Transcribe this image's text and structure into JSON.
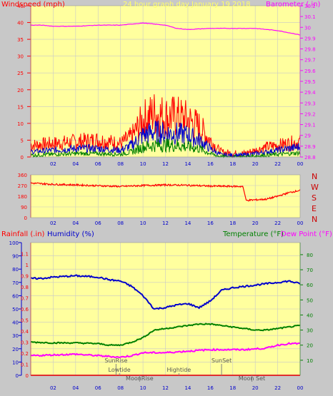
{
  "header": {
    "windspeed_label": "Windspeed (mph)",
    "title": "24 hour graph day   January 19 2018",
    "barometer_label": "Barometer (.in)"
  },
  "labels": {
    "rainfall": "Rainfall (.in)",
    "humidity": "Humidity (%)",
    "temperature": "Temperature (°F)",
    "dewpoint": "Dew Point (°F)",
    "compass": [
      "N",
      "W",
      "S",
      "E",
      "N"
    ]
  },
  "colors": {
    "plot_bg": "#ffff9e",
    "grid": "#c8c8c8",
    "red": "#ff0000",
    "blue": "#0000cc",
    "green": "#008000",
    "magenta": "#ff00ff",
    "title_yellow": "#ffff66",
    "dark_red": "#cc0000",
    "marker": "#808080"
  },
  "x_ticks": [
    "02",
    "04",
    "06",
    "08",
    "10",
    "12",
    "14",
    "16",
    "18",
    "20",
    "22",
    "00"
  ],
  "annotations": [
    {
      "text": "SunRise",
      "hour": 7.6,
      "row": 0
    },
    {
      "text": "Lowtide",
      "hour": 7.9,
      "row": 1
    },
    {
      "text": "Hightide",
      "hour": 13.2,
      "row": 1
    },
    {
      "text": "MoonRise",
      "hour": 9.7,
      "row": 2
    },
    {
      "text": "SunSet",
      "hour": 17.0,
      "row": 0
    },
    {
      "text": "Moon Set",
      "hour": 19.7,
      "row": 2
    }
  ],
  "chart_data": [
    {
      "id": "wind-barometer",
      "type": "line",
      "x_range": [
        0,
        24
      ],
      "y_left": {
        "label": "Windspeed (mph)",
        "range": [
          0,
          45
        ],
        "ticks": [
          0,
          5,
          10,
          15,
          20,
          25,
          30,
          35,
          40,
          45
        ]
      },
      "y_right": {
        "label": "Barometer (.in)",
        "range": [
          28.8,
          30.2
        ],
        "ticks": [
          "28.8",
          "28.9",
          "29",
          "29.1",
          "29.2",
          "29.3",
          "29.4",
          "29.5",
          "29.6",
          "29.7",
          "29.8",
          "29.9",
          "30",
          "30.1",
          "30.2"
        ]
      },
      "series": [
        {
          "name": "Windspeed (mph)",
          "role": "gust",
          "axis": "left",
          "color": "#ff0000",
          "x": [
            0,
            2,
            4,
            6,
            8,
            9,
            10,
            11,
            12,
            13,
            14,
            15,
            16,
            16.5,
            17,
            18,
            19,
            20,
            21,
            22,
            23,
            24
          ],
          "y": [
            3.5,
            4,
            4.5,
            5,
            4,
            6,
            11,
            13,
            12,
            12,
            11,
            9,
            5,
            3,
            1.5,
            1,
            1,
            2,
            3,
            3.5,
            4,
            4.5
          ]
        },
        {
          "axis": "left",
          "color": "#0000cc",
          "x": [
            0,
            2,
            4,
            6,
            8,
            9,
            10,
            11,
            12,
            13,
            14,
            15,
            16,
            16.5,
            17,
            18,
            19,
            20,
            21,
            22,
            23,
            24
          ],
          "y": [
            1.5,
            2,
            2.5,
            2.5,
            2,
            3.5,
            6.5,
            7.5,
            7,
            7,
            6.5,
            5,
            2.5,
            1.5,
            0.5,
            0.5,
            0.5,
            1,
            1.5,
            2,
            2.5,
            3
          ]
        },
        {
          "axis": "left",
          "color": "#008000",
          "x": [
            0,
            2,
            4,
            6,
            8,
            9,
            10,
            11,
            12,
            13,
            14,
            15,
            16,
            16.5,
            17,
            18,
            19,
            20,
            21,
            22,
            23,
            24
          ],
          "y": [
            0.5,
            0.8,
            1,
            1,
            0.8,
            1.5,
            3,
            3.5,
            3.5,
            3.5,
            3,
            2.5,
            1,
            0.5,
            0,
            0,
            0,
            0.3,
            0.5,
            0.8,
            1,
            1.2
          ]
        },
        {
          "name": "Barometer (.in)",
          "axis": "right",
          "color": "#ff00ff",
          "x": [
            0,
            1,
            2,
            4,
            6,
            8,
            10,
            12,
            13,
            14,
            16,
            18,
            20,
            22,
            23,
            24
          ],
          "y": [
            30.02,
            30.02,
            30.01,
            30.01,
            30.02,
            30.02,
            30.04,
            30.02,
            29.99,
            29.98,
            29.99,
            29.99,
            29.99,
            29.97,
            29.95,
            29.93
          ]
        }
      ]
    },
    {
      "id": "wind-direction",
      "type": "line",
      "x_range": [
        0,
        24
      ],
      "y_left": {
        "range": [
          0,
          360
        ],
        "ticks": [
          0,
          90,
          180,
          270,
          360
        ]
      },
      "series": [
        {
          "color": "#ff0000",
          "x": [
            0,
            2,
            4,
            6,
            7,
            8,
            10,
            12,
            14,
            16,
            18.9,
            19.2,
            21,
            22,
            23,
            24
          ],
          "y": [
            290,
            280,
            275,
            268,
            265,
            262,
            270,
            275,
            272,
            265,
            262,
            145,
            155,
            180,
            210,
            230
          ]
        }
      ]
    },
    {
      "id": "temp-humidity",
      "type": "line",
      "x_range": [
        0,
        24
      ],
      "y_left_outer": {
        "label": "Rainfall (.in)",
        "range": [
          0,
          1.2
        ],
        "ticks": [
          "0",
          "0.1",
          "0.2",
          "0.3",
          "0.4",
          "0.5",
          "0.6",
          "0.7",
          "0.8",
          "0.9",
          "1",
          "1.1"
        ]
      },
      "y_left_inner": {
        "label": "Humidity (%)",
        "range": [
          0,
          100
        ],
        "ticks": [
          0,
          10,
          20,
          30,
          40,
          50,
          60,
          70,
          80,
          90,
          100
        ]
      },
      "y_right": {
        "label": "Temperature (°F)",
        "range": [
          0,
          88
        ],
        "ticks": [
          10,
          20,
          30,
          40,
          50,
          60,
          70,
          80
        ]
      },
      "series": [
        {
          "name": "Humidity (%)",
          "axis": "left_inner",
          "color": "#0000cc",
          "x": [
            0,
            1,
            2,
            4,
            6,
            7,
            8,
            9,
            10,
            11,
            12,
            13,
            14,
            15,
            16,
            17,
            18,
            20,
            22,
            23,
            24
          ],
          "y": [
            73,
            73,
            74,
            75,
            74,
            72,
            71,
            67,
            60,
            50,
            51,
            53,
            54,
            51,
            56,
            64,
            66,
            68,
            70,
            71,
            69
          ]
        },
        {
          "name": "Temperature (°F)",
          "axis": "right",
          "color": "#008000",
          "x": [
            0,
            2,
            4,
            6,
            7,
            8,
            9,
            10,
            11,
            12,
            13,
            14,
            15,
            16,
            17,
            18,
            19,
            20,
            21,
            22,
            23,
            24
          ],
          "y": [
            22,
            21.5,
            21.5,
            21,
            20,
            20,
            22,
            25,
            30,
            31,
            32,
            33,
            34,
            34,
            33,
            32,
            31,
            30,
            30,
            31,
            32,
            33
          ]
        },
        {
          "name": "Dew Point (°F)",
          "axis": "right",
          "color": "#ff00ff",
          "x": [
            0,
            2,
            4,
            6,
            7,
            8,
            9,
            10,
            12,
            14,
            16,
            18,
            19,
            20,
            21,
            22,
            23,
            24
          ],
          "y": [
            13,
            13.5,
            14,
            13,
            12.5,
            12,
            13,
            15,
            15,
            16,
            17,
            17,
            17,
            17.5,
            18,
            20,
            21,
            21
          ]
        },
        {
          "name": "Rainfall (.in)",
          "axis": "left_outer",
          "color": "#ff0000",
          "x": [
            0,
            24
          ],
          "y": [
            0,
            0
          ]
        }
      ]
    }
  ]
}
